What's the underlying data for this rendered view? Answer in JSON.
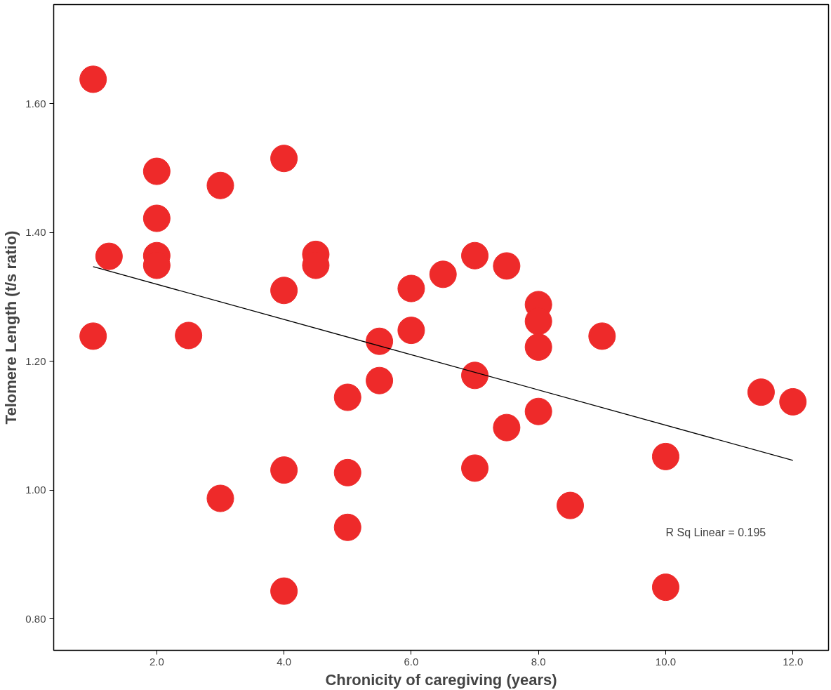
{
  "chart_data": {
    "type": "scatter",
    "xlabel": "Chronicity of caregiving (years)",
    "ylabel": "Telomere Length (t/s ratio)",
    "xlim": [
      0.38,
      12.56
    ],
    "ylim": [
      0.751,
      1.754
    ],
    "xticks": [
      {
        "value": 2,
        "label": "2.0"
      },
      {
        "value": 4,
        "label": "4.0"
      },
      {
        "value": 6,
        "label": "6.0"
      },
      {
        "value": 8,
        "label": "8.0"
      },
      {
        "value": 10,
        "label": "10.0"
      },
      {
        "value": 12,
        "label": "12.0"
      }
    ],
    "yticks": [
      {
        "value": 0.8,
        "label": "0.80"
      },
      {
        "value": 1.0,
        "label": "1.00"
      },
      {
        "value": 1.2,
        "label": "1.20"
      },
      {
        "value": 1.4,
        "label": "1.40"
      },
      {
        "value": 1.6,
        "label": "1.60"
      }
    ],
    "grid": false,
    "series": [
      {
        "color": "#ee2a2a",
        "marker": "circle",
        "x": [
          1,
          1,
          1.25,
          2,
          2,
          2,
          2,
          2.5,
          3,
          3,
          4,
          4,
          4,
          4,
          4.5,
          4.5,
          5,
          5,
          5,
          5.5,
          5.5,
          6,
          6,
          6.5,
          7,
          7,
          7,
          7.5,
          7.5,
          8,
          8,
          8,
          8,
          8.5,
          9,
          10,
          10,
          11.5,
          12
        ],
        "values": [
          1.638,
          1.239,
          1.363,
          1.495,
          1.422,
          1.364,
          1.349,
          1.24,
          1.473,
          0.987,
          1.515,
          1.31,
          1.031,
          0.843,
          1.366,
          1.349,
          1.144,
          1.027,
          0.942,
          1.231,
          1.17,
          1.313,
          1.248,
          1.335,
          1.364,
          1.178,
          1.034,
          1.348,
          1.097,
          1.288,
          1.262,
          1.222,
          1.122,
          0.976,
          1.239,
          1.052,
          0.849,
          1.152,
          1.137
        ]
      },
      {
        "type": "line",
        "color": "#000000",
        "x": [
          1,
          12
        ],
        "values": [
          1.347,
          1.046
        ]
      }
    ],
    "annotations": [
      "R Sq Linear = 0.195"
    ]
  }
}
